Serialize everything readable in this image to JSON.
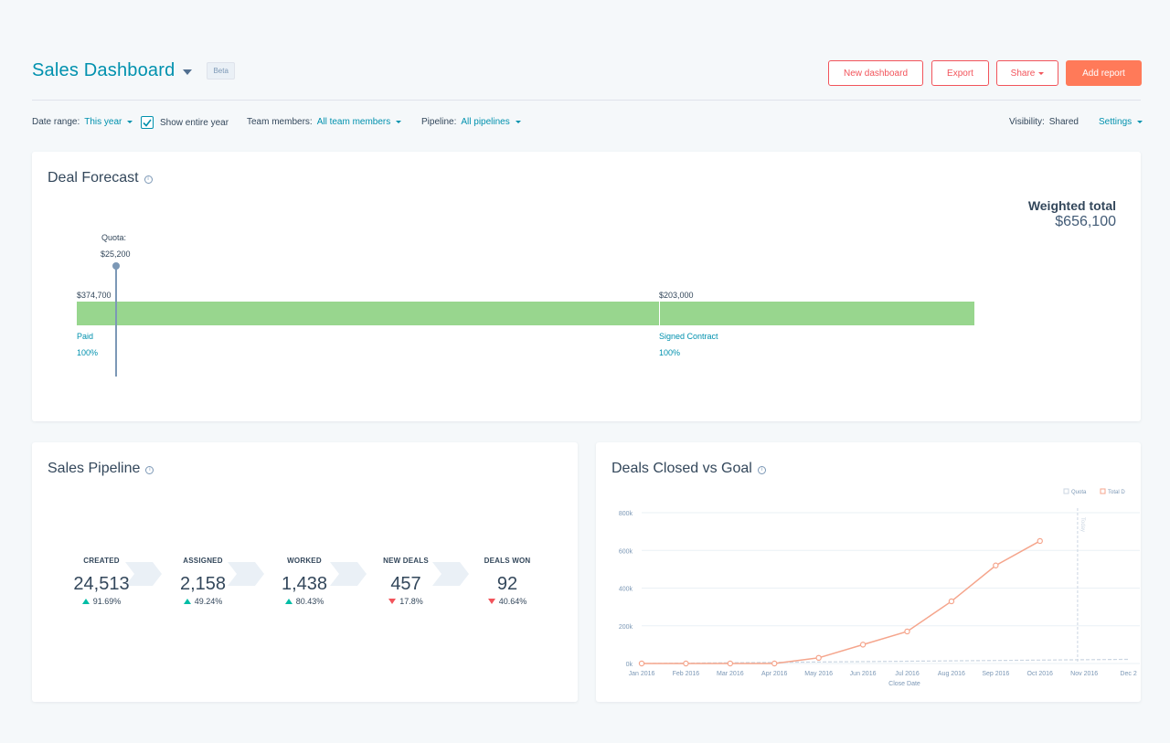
{
  "header": {
    "title": "Sales Dashboard",
    "badge": "Beta",
    "buttons": {
      "new_dashboard": "New dashboard",
      "export": "Export",
      "share": "Share",
      "add_report": "Add report"
    }
  },
  "filters": {
    "date_range_label": "Date range:",
    "date_range_value": "This year",
    "show_entire_year": "Show entire year",
    "show_entire_year_checked": true,
    "team_label": "Team members:",
    "team_value": "All team members",
    "pipeline_label": "Pipeline:",
    "pipeline_value": "All pipelines",
    "visibility_label": "Visibility:",
    "visibility_value": "Shared",
    "settings": "Settings"
  },
  "deal_forecast": {
    "title": "Deal Forecast",
    "weighted_total_label": "Weighted total",
    "weighted_total_value": "$656,100",
    "quota_label": "Quota:",
    "quota_value": "$25,200",
    "segments": [
      {
        "amount": "$374,700",
        "stage": "Paid",
        "percent": "100%",
        "value": 374700
      },
      {
        "amount": "$203,000",
        "stage": "Signed Contract",
        "percent": "100%",
        "value": 203000
      }
    ],
    "bar_color": "#98d68e"
  },
  "sales_pipeline": {
    "title": "Sales Pipeline",
    "stages": [
      {
        "label": "CREATED",
        "value": "24,513",
        "change": "91.69%",
        "direction": "up"
      },
      {
        "label": "ASSIGNED",
        "value": "2,158",
        "change": "49.24%",
        "direction": "up"
      },
      {
        "label": "WORKED",
        "value": "1,438",
        "change": "80.43%",
        "direction": "up"
      },
      {
        "label": "NEW DEALS",
        "value": "457",
        "change": "17.8%",
        "direction": "down"
      },
      {
        "label": "DEALS WON",
        "value": "92",
        "change": "40.64%",
        "direction": "down"
      }
    ]
  },
  "deals_closed": {
    "title": "Deals Closed vs Goal",
    "legend": [
      "Quota",
      "Total D"
    ],
    "xlabel": "Close Date",
    "today_label": "Today"
  },
  "chart_data": {
    "type": "line",
    "title": "Deals Closed vs Goal",
    "xlabel": "Close Date",
    "ylabel": "",
    "categories": [
      "Jan 2016",
      "Feb 2016",
      "Mar 2016",
      "Apr 2016",
      "May 2016",
      "Jun 2016",
      "Jul 2016",
      "Aug 2016",
      "Sep 2016",
      "Oct 2016",
      "Nov 2016",
      "Dec 2"
    ],
    "y_ticks": [
      "0k",
      "200k",
      "400k",
      "600k",
      "800k"
    ],
    "ylim": [
      0,
      800000
    ],
    "grid": true,
    "legend_position": "top-right",
    "series": [
      {
        "name": "Quota",
        "color": "#cbd6e2",
        "values": [
          0,
          2000,
          4000,
          6000,
          8000,
          10000,
          12000,
          14000,
          16000,
          18000,
          20000,
          22000
        ]
      },
      {
        "name": "Total D",
        "color": "#f5a58c",
        "values": [
          0,
          0,
          0,
          0,
          30000,
          100000,
          170000,
          330000,
          520000,
          650000,
          null,
          null
        ]
      }
    ]
  }
}
